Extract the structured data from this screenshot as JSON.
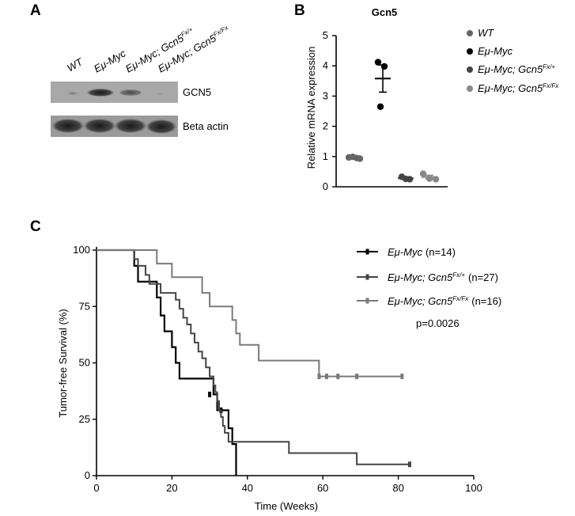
{
  "panels": {
    "a": "A",
    "b": "B",
    "c": "C"
  },
  "western": {
    "lanes": [
      {
        "main": "WT",
        "sup": ""
      },
      {
        "main": "Eμ-Myc",
        "sup": ""
      },
      {
        "main": "Eμ-Myc; Gcn5",
        "sup": "Fx/+"
      },
      {
        "main": "Eμ-Myc; Gcn5",
        "sup": "Fx/Fx"
      }
    ],
    "bands": [
      "GCN5",
      "Beta actin"
    ]
  },
  "colors": {
    "black": "#000000",
    "dark_gray": "#444444",
    "mid_gray": "#6b6b6b",
    "light_gray": "#9a9a9a"
  },
  "chart_data": [
    {
      "type": "scatter",
      "title": "Gcn5",
      "ylabel": "Relative mRNA expression",
      "ylim": [
        0,
        5
      ],
      "yticks": [
        "0",
        "1",
        "2",
        "3",
        "4",
        "5"
      ],
      "series": [
        {
          "name": "WT",
          "sup": "",
          "italic": true,
          "color": "#666666",
          "values": [
            0.97,
            0.99,
            0.95,
            0.93
          ],
          "mean": 0.96,
          "sem": 0.02
        },
        {
          "name": "Eμ-Myc",
          "sup": "",
          "italic": true,
          "color": "#000000",
          "values": [
            4.12,
            3.98,
            2.65
          ],
          "mean": 3.58,
          "sem": 0.45
        },
        {
          "name": "Eμ-Myc; Gcn5",
          "sup": "Fx/+",
          "italic": true,
          "color": "#444444",
          "values": [
            0.33,
            0.26,
            0.25
          ],
          "mean": 0.28,
          "sem": 0.03
        },
        {
          "name": "Eμ-Myc; Gcn5",
          "sup": "Fx/Fx",
          "italic": true,
          "color": "#888888",
          "values": [
            0.43,
            0.27,
            0.25
          ],
          "mean": 0.32,
          "sem": 0.06
        }
      ]
    },
    {
      "type": "line",
      "subtype": "kaplan-meier",
      "xlabel": "Time (Weeks)",
      "ylabel": "Tumor-free Survival (%)",
      "xlim": [
        0,
        100
      ],
      "ylim": [
        0,
        100
      ],
      "xticks": [
        "0",
        "20",
        "40",
        "60",
        "80",
        "100"
      ],
      "yticks": [
        "0",
        "25",
        "50",
        "75",
        "100"
      ],
      "pvalue": "p=0.0026",
      "series": [
        {
          "name": "Eμ-Myc",
          "sup": "",
          "n": "(n=14)",
          "color": "#000000",
          "steps": [
            [
              0,
              100
            ],
            [
              10,
              100
            ],
            [
              10,
              93
            ],
            [
              11,
              93
            ],
            [
              11,
              86
            ],
            [
              16,
              86
            ],
            [
              16,
              79
            ],
            [
              17,
              79
            ],
            [
              17,
              71
            ],
            [
              18,
              71
            ],
            [
              18,
              64
            ],
            [
              20,
              64
            ],
            [
              20,
              57
            ],
            [
              21,
              57
            ],
            [
              21,
              50
            ],
            [
              22,
              50
            ],
            [
              22,
              43
            ],
            [
              31,
              43
            ],
            [
              31,
              36
            ],
            [
              32,
              36
            ],
            [
              32,
              29
            ],
            [
              35,
              29
            ],
            [
              35,
              21
            ],
            [
              36,
              21
            ],
            [
              36,
              14
            ],
            [
              37,
              14
            ],
            [
              37,
              0
            ]
          ],
          "censor": [
            [
              30,
              36
            ],
            [
              33,
              29
            ]
          ]
        },
        {
          "name": "Eμ-Myc; Gcn5",
          "sup": "Fx/+",
          "n": "(n=27)",
          "color": "#444444",
          "steps": [
            [
              0,
              100
            ],
            [
              10,
              100
            ],
            [
              10,
              96
            ],
            [
              11,
              96
            ],
            [
              11,
              93
            ],
            [
              13,
              93
            ],
            [
              13,
              89
            ],
            [
              14,
              89
            ],
            [
              14,
              85
            ],
            [
              17,
              85
            ],
            [
              17,
              81
            ],
            [
              21,
              81
            ],
            [
              21,
              78
            ],
            [
              22,
              78
            ],
            [
              22,
              74
            ],
            [
              23,
              74
            ],
            [
              23,
              70
            ],
            [
              24,
              70
            ],
            [
              24,
              67
            ],
            [
              25,
              67
            ],
            [
              25,
              63
            ],
            [
              26,
              63
            ],
            [
              26,
              59
            ],
            [
              27,
              59
            ],
            [
              27,
              55
            ],
            [
              28,
              55
            ],
            [
              28,
              52
            ],
            [
              29,
              52
            ],
            [
              29,
              48
            ],
            [
              30,
              48
            ],
            [
              30,
              44
            ],
            [
              31,
              44
            ],
            [
              31,
              40
            ],
            [
              31.5,
              40
            ],
            [
              31.5,
              37
            ],
            [
              32,
              37
            ],
            [
              32,
              33
            ],
            [
              32.5,
              33
            ],
            [
              32.5,
              29
            ],
            [
              33,
              29
            ],
            [
              33,
              26
            ],
            [
              33.5,
              26
            ],
            [
              33.5,
              22
            ],
            [
              34,
              22
            ],
            [
              34,
              19
            ],
            [
              35,
              19
            ],
            [
              35,
              15
            ],
            [
              51,
              15
            ],
            [
              51,
              10
            ],
            [
              69,
              10
            ],
            [
              69,
              5
            ],
            [
              83,
              5
            ]
          ],
          "censor": [
            [
              83,
              5
            ]
          ]
        },
        {
          "name": "Eμ-Myc; Gcn5",
          "sup": "Fx/Fx",
          "n": "(n=16)",
          "color": "#7a7a7a",
          "steps": [
            [
              0,
              100
            ],
            [
              16,
              100
            ],
            [
              16,
              94
            ],
            [
              20,
              94
            ],
            [
              20,
              88
            ],
            [
              28,
              88
            ],
            [
              28,
              81
            ],
            [
              30,
              81
            ],
            [
              30,
              75
            ],
            [
              36,
              75
            ],
            [
              36,
              69
            ],
            [
              37,
              69
            ],
            [
              37,
              63
            ],
            [
              38,
              63
            ],
            [
              38,
              58
            ],
            [
              43,
              58
            ],
            [
              43,
              51
            ],
            [
              59,
              51
            ],
            [
              59,
              44
            ],
            [
              81,
              44
            ]
          ],
          "censor": [
            [
              59,
              44
            ],
            [
              61,
              44
            ],
            [
              64,
              44
            ],
            [
              69,
              44
            ],
            [
              81,
              44
            ]
          ]
        }
      ]
    }
  ]
}
